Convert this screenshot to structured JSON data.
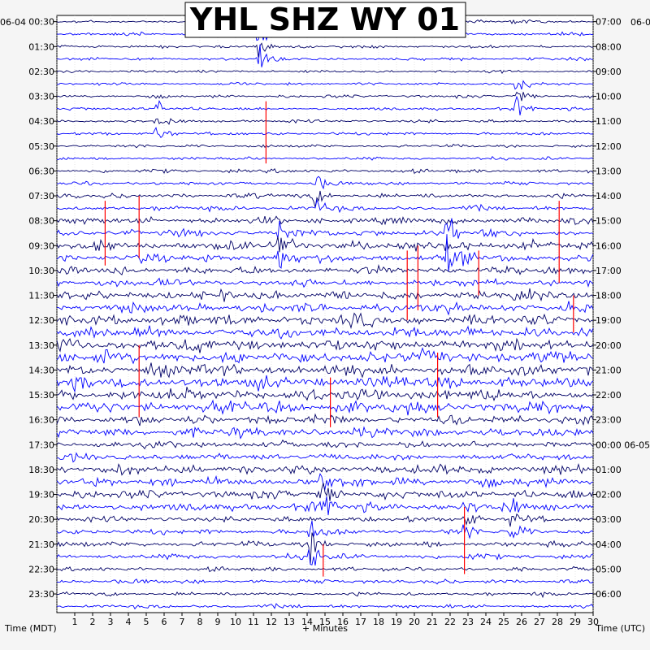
{
  "chart_data": {
    "type": "line",
    "title": "YHL SHZ WY 01",
    "left_date": "06-04",
    "right_date": "06-0",
    "xlabel": "+ Minutes",
    "left_axis_label": "Time (MDT)",
    "right_axis_label": "Time (UTC)",
    "x_ticks": [
      "1",
      "2",
      "3",
      "4",
      "5",
      "6",
      "7",
      "8",
      "9",
      "10",
      "11",
      "12",
      "13",
      "14",
      "15",
      "16",
      "17",
      "18",
      "19",
      "20",
      "21",
      "22",
      "23",
      "24",
      "25",
      "26",
      "27",
      "28",
      "29",
      "30"
    ],
    "xlim": [
      0,
      30
    ],
    "left_time_labels": [
      "00:30",
      "01:30",
      "02:30",
      "03:30",
      "04:30",
      "05:30",
      "06:30",
      "07:30",
      "08:30",
      "09:30",
      "10:30",
      "11:30",
      "12:30",
      "13:30",
      "14:30",
      "15:30",
      "16:30",
      "17:30",
      "18:30",
      "19:30",
      "20:30",
      "21:30",
      "22:30",
      "23:30"
    ],
    "right_time_labels": [
      "07:00",
      "08:00",
      "09:00",
      "10:00",
      "11:00",
      "12:00",
      "13:00",
      "14:00",
      "15:00",
      "16:00",
      "17:00",
      "18:00",
      "19:00",
      "20:00",
      "21:00",
      "22:00",
      "23:00",
      "00:00 06-05",
      "01:00",
      "02:00",
      "03:00",
      "04:00",
      "05:00",
      "06:00"
    ],
    "trace_count": 48,
    "trace_colors": [
      "#000066",
      "#0000ff"
    ],
    "highlight_color": "#ff0000",
    "amplitude_by_hour": [
      0.25,
      0.25,
      0.22,
      0.25,
      0.25,
      0.25,
      0.3,
      0.4,
      0.55,
      0.7,
      0.6,
      0.75,
      0.9,
      1.0,
      1.0,
      0.95,
      0.75,
      0.55,
      0.75,
      0.7,
      0.45,
      0.45,
      0.35,
      0.3
    ],
    "events": [
      {
        "minute": 11.3,
        "hour_index": 1,
        "strength": 1.4
      },
      {
        "minute": 25.7,
        "hour_index": 3,
        "strength": 1.2
      },
      {
        "minute": 5.6,
        "hour_index": 4,
        "strength": 1.0
      },
      {
        "minute": 14.5,
        "hour_index": 7,
        "strength": 1.0
      },
      {
        "minute": 21.8,
        "hour_index": 9,
        "strength": 1.8
      },
      {
        "minute": 12.5,
        "hour_index": 9,
        "strength": 1.2
      },
      {
        "minute": 14.2,
        "hour_index": 21,
        "strength": 1.6
      },
      {
        "minute": 14.8,
        "hour_index": 19,
        "strength": 1.8
      },
      {
        "minute": 22.8,
        "hour_index": 20,
        "strength": 1.0
      },
      {
        "minute": 25.5,
        "hour_index": 20,
        "strength": 0.9
      }
    ],
    "red_spikes": [
      {
        "minute": 11.7,
        "top_hour": 3.2,
        "bottom_hour": 5.7
      },
      {
        "minute": 2.7,
        "top_hour": 7.2,
        "bottom_hour": 9.8
      },
      {
        "minute": 4.6,
        "top_hour": 7.0,
        "bottom_hour": 9.5
      },
      {
        "minute": 28.1,
        "top_hour": 7.2,
        "bottom_hour": 10.5
      },
      {
        "minute": 19.6,
        "top_hour": 9.2,
        "bottom_hour": 12.0
      },
      {
        "minute": 20.2,
        "top_hour": 9.0,
        "bottom_hour": 11.6
      },
      {
        "minute": 23.6,
        "top_hour": 9.2,
        "bottom_hour": 11.0
      },
      {
        "minute": 28.9,
        "top_hour": 11.0,
        "bottom_hour": 12.5
      },
      {
        "minute": 4.6,
        "top_hour": 13.0,
        "bottom_hour": 15.9
      },
      {
        "minute": 15.3,
        "top_hour": 14.3,
        "bottom_hour": 16.3
      },
      {
        "minute": 21.3,
        "top_hour": 13.3,
        "bottom_hour": 15.9
      },
      {
        "minute": 22.8,
        "top_hour": 19.5,
        "bottom_hour": 22.2
      },
      {
        "minute": 14.9,
        "top_hour": 21.0,
        "bottom_hour": 22.3
      }
    ]
  }
}
